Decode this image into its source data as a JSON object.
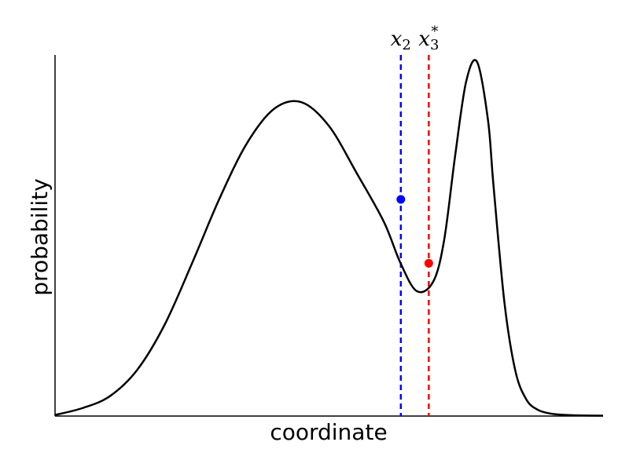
{
  "chart_data": {
    "type": "line",
    "xlabel": "coordinate",
    "ylabel": "probability",
    "xlim": [
      0,
      1
    ],
    "ylim": [
      0,
      1
    ],
    "grid": false,
    "x_ticks_shown": false,
    "y_ticks_shown": false,
    "series": [
      {
        "color": "#000000",
        "x": [
          0.0,
          0.05,
          0.1,
          0.15,
          0.2,
          0.25,
          0.3,
          0.35,
          0.4,
          0.45,
          0.5,
          0.55,
          0.6,
          0.63,
          0.66,
          0.69,
          0.71,
          0.73,
          0.75,
          0.77,
          0.79,
          0.8,
          0.82,
          0.84,
          0.86,
          0.88,
          0.9,
          0.92,
          0.95,
          1.0
        ],
        "y": [
          0.003,
          0.022,
          0.055,
          0.128,
          0.253,
          0.423,
          0.602,
          0.755,
          0.851,
          0.869,
          0.803,
          0.674,
          0.538,
          0.425,
          0.346,
          0.372,
          0.487,
          0.72,
          0.925,
          0.981,
          0.82,
          0.64,
          0.315,
          0.125,
          0.046,
          0.018,
          0.008,
          0.004,
          0.002,
          0.001
        ]
      }
    ],
    "markers": [
      {
        "label": "x2",
        "x": 0.631,
        "y": 0.6,
        "color": "#0000ff"
      },
      {
        "label": "x3*",
        "x": 0.682,
        "y": 0.423,
        "color": "#ff0000"
      }
    ]
  }
}
